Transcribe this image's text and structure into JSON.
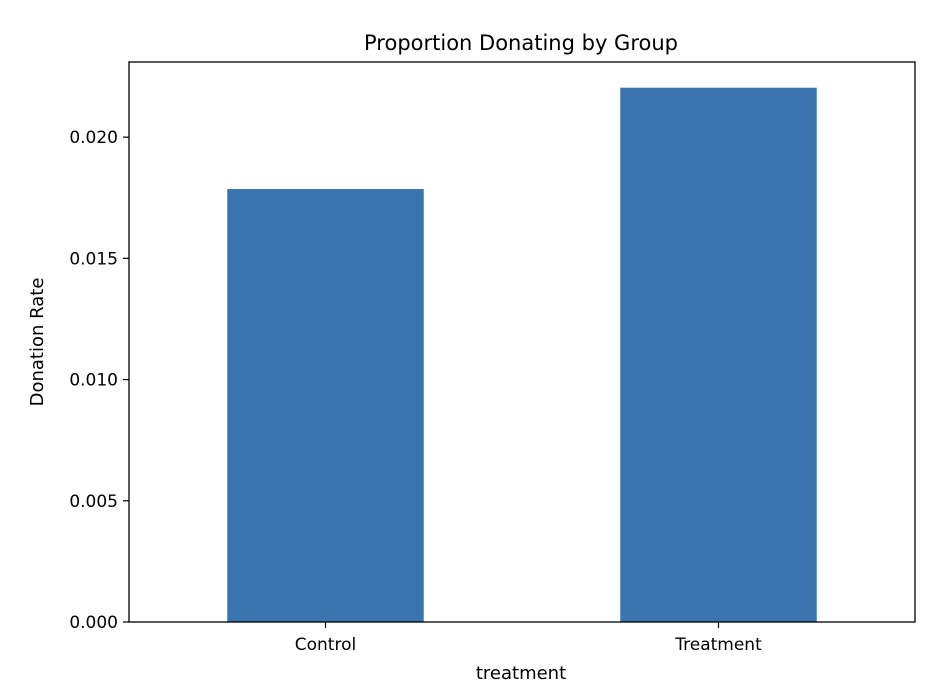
{
  "chart_data": {
    "type": "bar",
    "title": "Proportion Donating by Group",
    "xlabel": "treatment",
    "ylabel": "Donation Rate",
    "categories": [
      "Control",
      "Treatment"
    ],
    "values": [
      0.01786,
      0.02204
    ],
    "ylim": [
      0,
      0.0231
    ],
    "yticks": [
      0.0,
      0.005,
      0.01,
      0.015,
      0.02
    ],
    "ytick_labels": [
      "0.000",
      "0.005",
      "0.010",
      "0.015",
      "0.020"
    ],
    "bar_color": "#3a75b0",
    "grid": false,
    "legend": "none"
  }
}
